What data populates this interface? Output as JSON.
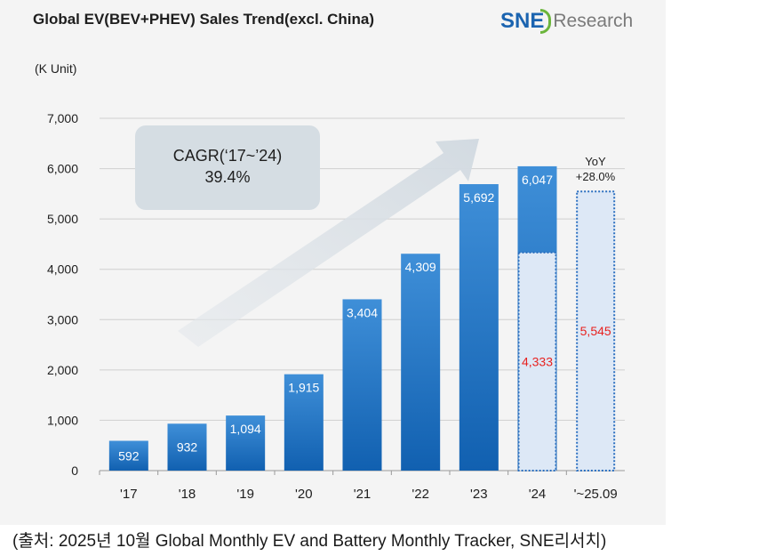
{
  "chart_data": {
    "type": "bar",
    "title": "Global EV(BEV+PHEV) Sales Trend(excl. China)",
    "unit_label": "(K Unit)",
    "categories": [
      "'17",
      "'18",
      "'19",
      "'20",
      "'21",
      "'22",
      "'23",
      "'24",
      "'~25.09"
    ],
    "series": [
      {
        "values": [
          592,
          932,
          1094,
          1915,
          3404,
          4309,
          5692,
          6047,
          null
        ],
        "labels": [
          "592",
          "932",
          "1,094",
          "1,915",
          "3,404",
          "4,309",
          "5,692",
          "6,047",
          ""
        ]
      },
      {
        "values": [
          null,
          null,
          null,
          null,
          null,
          null,
          null,
          4333,
          5545
        ],
        "labels": [
          "",
          "",
          "",
          "",
          "",
          "",
          "",
          "4,333",
          "5,545"
        ]
      }
    ],
    "ylim": [
      0,
      7000
    ],
    "yticks": [
      0,
      1000,
      2000,
      3000,
      4000,
      5000,
      6000,
      7000
    ],
    "ytick_labels": [
      "0",
      "1,000",
      "2,000",
      "3,000",
      "4,000",
      "5,000",
      "6,000",
      "7,000"
    ],
    "grid": true,
    "annotations": {
      "cagr_line1": "CAGR(‘17~’24)",
      "cagr_line2": "39.4%",
      "yoy_line1": "YoY",
      "yoy_line2": "+28.0%"
    },
    "colors": {
      "bar_top": "#3f8fd8",
      "bar_bottom": "#1160b0",
      "partial_fill": "#dde8f6",
      "partial_border": "#2a6fc0",
      "partial_label": "#e8211f",
      "arrow": "#dde3e8",
      "cagr_box": "#d5dde3"
    }
  },
  "logo": {
    "sne": "SNE",
    "research": "Research"
  },
  "source": "(출처: 2025년 10월 Global Monthly EV and Battery Monthly Tracker, SNE리서치)"
}
